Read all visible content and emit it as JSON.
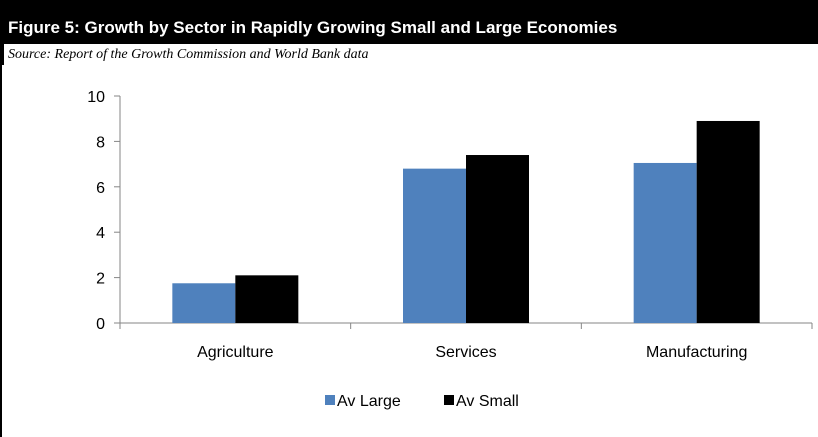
{
  "figure": {
    "title": "Figure 5: Growth by Sector in Rapidly Growing Small and Large Economies",
    "source": "Source: Report of the Growth Commission and World Bank data"
  },
  "chart_data": {
    "type": "bar",
    "title": "",
    "xlabel": "",
    "ylabel": "",
    "categories": [
      "Agriculture",
      "Services",
      "Manufacturing"
    ],
    "series": [
      {
        "name": "Av Large",
        "values": [
          1.75,
          6.8,
          7.05
        ],
        "color": "#4f81bd"
      },
      {
        "name": "Av Small",
        "values": [
          2.1,
          7.4,
          8.9
        ],
        "color": "#000000"
      }
    ],
    "ylim": [
      0,
      10
    ],
    "yticks": [
      0,
      2,
      4,
      6,
      8,
      10
    ],
    "grid": false,
    "legend": "bottom"
  }
}
